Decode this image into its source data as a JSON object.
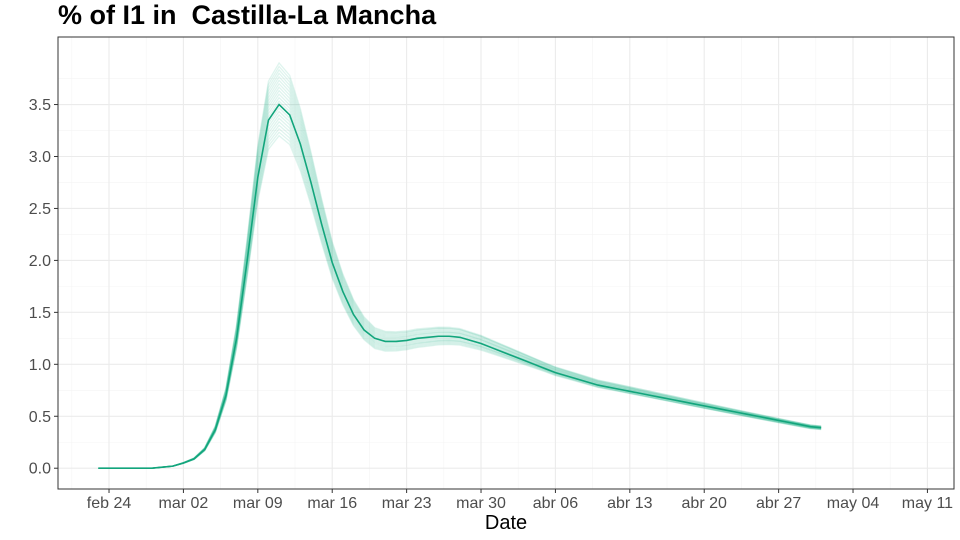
{
  "chart_data": {
    "type": "line",
    "title": "% of I1 in  Castilla-La Mancha",
    "xlabel": "Date",
    "ylabel": "",
    "x_ticks": [
      "feb 24",
      "mar 02",
      "mar 09",
      "mar 16",
      "mar 23",
      "mar 30",
      "abr 06",
      "abr 13",
      "abr 20",
      "abr 27",
      "may 04",
      "may 11"
    ],
    "x_tick_days": [
      0,
      7,
      14,
      21,
      28,
      35,
      42,
      49,
      56,
      63,
      70,
      77
    ],
    "xlim_days": [
      -4.8,
      79.5
    ],
    "y_ticks": [
      "0.0",
      "0.5",
      "1.0",
      "1.5",
      "2.0",
      "2.5",
      "3.0",
      "3.5"
    ],
    "ylim": [
      -0.2,
      4.15
    ],
    "grid": true,
    "legend": "none",
    "color": "#1aaf86",
    "x_start": "feb 23",
    "x_step_days": 1,
    "series_mean": [
      0.0,
      0.0,
      0.0,
      0.0,
      0.0,
      0.0,
      0.01,
      0.02,
      0.05,
      0.09,
      0.18,
      0.37,
      0.7,
      1.25,
      2.0,
      2.8,
      3.35,
      3.5,
      3.4,
      3.12,
      2.75,
      2.35,
      1.98,
      1.7,
      1.48,
      1.33,
      1.25,
      1.22,
      1.22,
      1.23,
      1.25,
      1.26,
      1.27,
      1.27,
      1.26,
      1.23,
      1.2,
      1.16,
      1.12,
      1.08,
      1.04,
      1.0,
      0.96,
      0.92,
      0.89,
      0.86,
      0.83,
      0.8,
      0.78,
      0.76,
      0.74,
      0.72,
      0.7,
      0.68,
      0.66,
      0.64,
      0.62,
      0.6,
      0.58,
      0.56,
      0.54,
      0.52,
      0.5,
      0.48,
      0.46,
      0.44,
      0.42,
      0.4,
      0.39
    ],
    "band_peak_range": [
      3.2,
      3.9
    ]
  }
}
